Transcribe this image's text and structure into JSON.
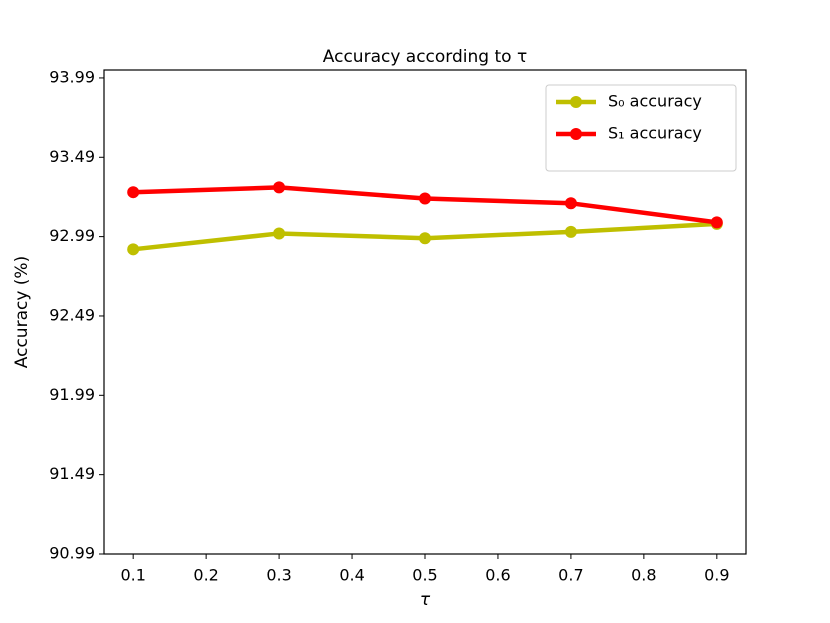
{
  "chart_data": {
    "type": "line",
    "title": "Accuracy according to τ",
    "xlabel": "τ",
    "ylabel": "Accuracy (%)",
    "x": [
      0.1,
      0.3,
      0.5,
      0.7,
      0.9
    ],
    "series": [
      {
        "name": "S₀ accuracy",
        "color": "#bfbf00",
        "values": [
          92.91,
          93.01,
          92.98,
          93.02,
          93.07
        ]
      },
      {
        "name": "S₁ accuracy",
        "color": "#ff0000",
        "values": [
          93.27,
          93.3,
          93.23,
          93.2,
          93.08
        ]
      }
    ],
    "xlim": [
      0.06,
      0.94
    ],
    "xticks": [
      0.1,
      0.2,
      0.3,
      0.4,
      0.5,
      0.6,
      0.7,
      0.8,
      0.9
    ],
    "ylim": [
      90.99,
      94.04
    ],
    "yticks": [
      90.99,
      91.49,
      91.99,
      92.49,
      92.99,
      93.49,
      93.99
    ],
    "grid": false,
    "legend": "upper right"
  }
}
